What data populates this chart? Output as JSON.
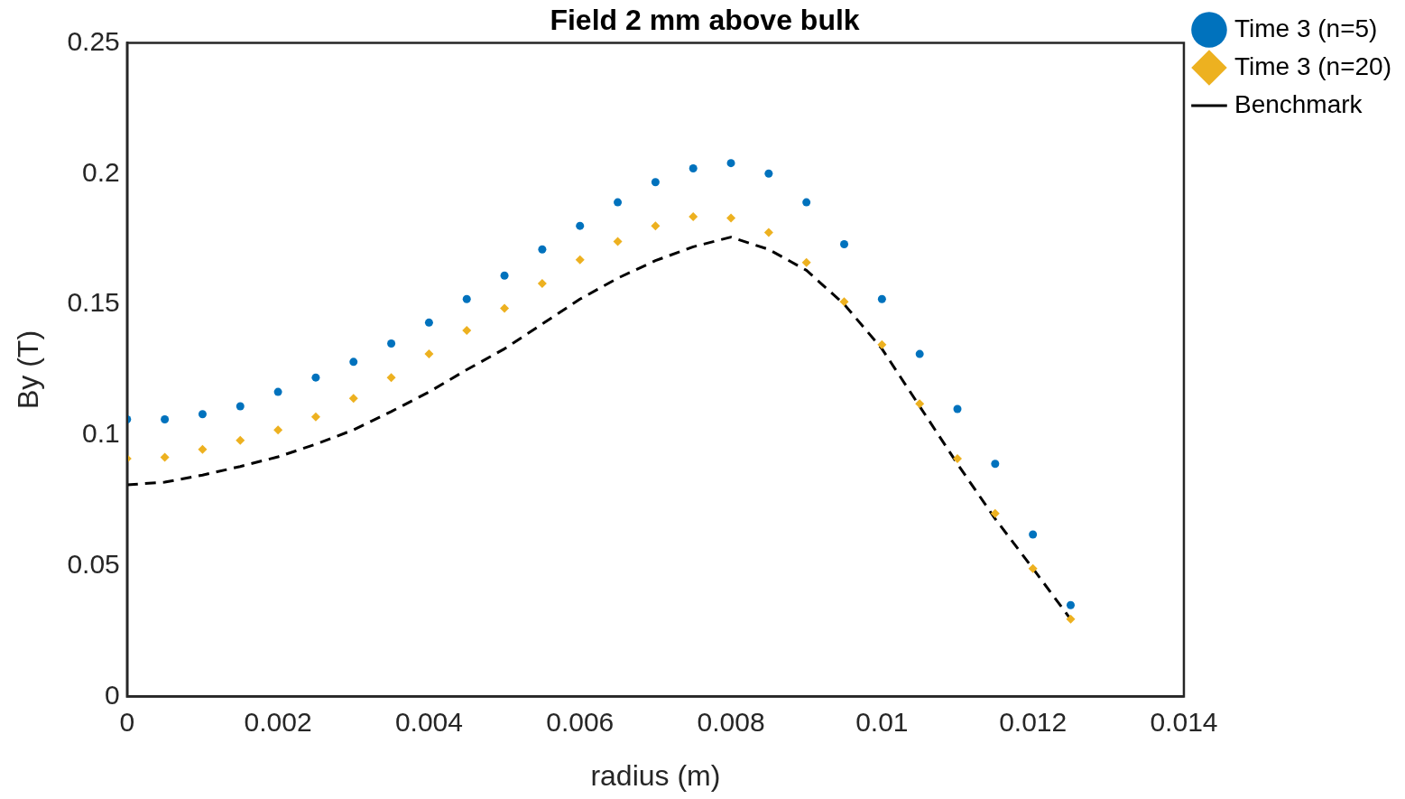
{
  "chart_data": {
    "type": "scatter",
    "title": "Field 2 mm above bulk",
    "xlabel": "radius (m)",
    "ylabel": "By (T)",
    "x": [
      0,
      0.0005,
      0.001,
      0.0015,
      0.002,
      0.0025,
      0.003,
      0.0035,
      0.004,
      0.0045,
      0.005,
      0.0055,
      0.006,
      0.0065,
      0.007,
      0.0075,
      0.008,
      0.0085,
      0.009,
      0.0095,
      0.01,
      0.0105,
      0.011,
      0.0115,
      0.012,
      0.0125
    ],
    "series": [
      {
        "name": "Time 3 (n=5)",
        "color": "#0072bd",
        "marker": "circle",
        "values": [
          0.106,
          0.106,
          0.108,
          0.111,
          0.1165,
          0.122,
          0.128,
          0.135,
          0.143,
          0.152,
          0.161,
          0.171,
          0.18,
          0.189,
          0.1967,
          0.202,
          0.204,
          0.2,
          0.189,
          0.173,
          0.152,
          0.131,
          0.11,
          0.089,
          0.062,
          0.035
        ]
      },
      {
        "name": "Time 3 (n=20)",
        "color": "#edb120",
        "marker": "diamond",
        "values": [
          0.091,
          0.0915,
          0.0945,
          0.098,
          0.102,
          0.107,
          0.114,
          0.122,
          0.131,
          0.14,
          0.1485,
          0.158,
          0.167,
          0.174,
          0.18,
          0.1835,
          0.183,
          0.1775,
          0.166,
          0.151,
          0.1346,
          0.112,
          0.091,
          0.07,
          0.049,
          0.0296
        ]
      },
      {
        "name": "Benchmark",
        "type": "line",
        "color": "#000000",
        "line_style": "dashed",
        "marker": "none",
        "values": [
          0.081,
          0.082,
          0.0847,
          0.088,
          0.0917,
          0.0965,
          0.102,
          0.109,
          0.1165,
          0.125,
          0.133,
          0.1425,
          0.152,
          0.16,
          0.1667,
          0.172,
          0.1757,
          0.171,
          0.163,
          0.15,
          0.133,
          0.111,
          0.089,
          0.068,
          0.049,
          0.0296
        ]
      }
    ],
    "xlim": [
      0,
      0.014
    ],
    "xticks": [
      0,
      0.002,
      0.004,
      0.006,
      0.008,
      0.01,
      0.012,
      0.014
    ],
    "ylim": [
      0,
      0.25
    ],
    "yticks": [
      0,
      0.05,
      0.1,
      0.15,
      0.2,
      0.25
    ],
    "grid": false,
    "legend": "top right"
  }
}
